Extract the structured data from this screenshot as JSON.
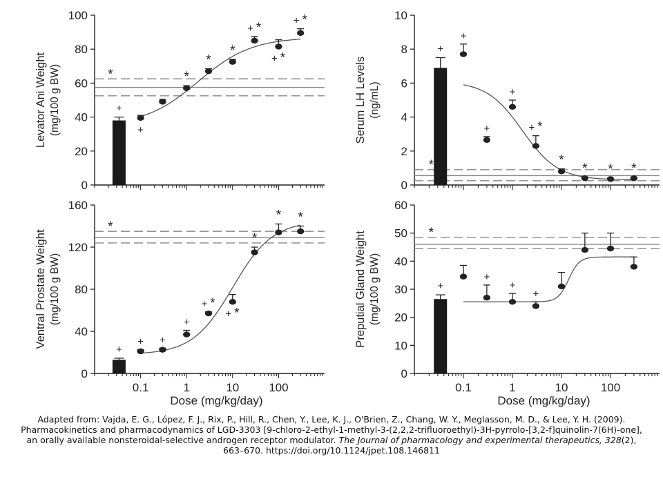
{
  "colors": {
    "ink": "#222222",
    "bar": "#1a1a1a",
    "ref_line": "#888888"
  },
  "chart_data": [
    {
      "type": "scatter",
      "ylabel": "Levator Ani Weight",
      "yunit": "(mg/100 g BW)",
      "ylim": [
        0,
        100
      ],
      "yticks": [
        0,
        20,
        40,
        60,
        80,
        100
      ],
      "xscale": "log",
      "xlim": [
        0.01,
        1000
      ],
      "xticks": [
        0.1,
        1,
        10,
        100
      ],
      "xticklabels": [],
      "xlabel": "",
      "grid": false,
      "control_bar": {
        "value": 38,
        "error": 2,
        "marks": "+"
      },
      "reference": {
        "mean": 57.5,
        "upper": 62.5,
        "lower": 52.5,
        "mark": "*"
      },
      "points": [
        {
          "x": 0.1,
          "y": 39.5,
          "err": 1.5,
          "marks": "+",
          "mark_pos": "below"
        },
        {
          "x": 0.3,
          "y": 49,
          "err": 1.5,
          "marks": "",
          "mark_pos": "above"
        },
        {
          "x": 1,
          "y": 57,
          "err": 1.5,
          "marks": "*",
          "mark_pos": "above"
        },
        {
          "x": 3,
          "y": 67,
          "err": 1.5,
          "marks": "*",
          "mark_pos": "above"
        },
        {
          "x": 10,
          "y": 72.5,
          "err": 1.5,
          "marks": "*",
          "mark_pos": "above"
        },
        {
          "x": 30,
          "y": 85,
          "err": 2.5,
          "marks": "+ *",
          "mark_pos": "above"
        },
        {
          "x": 100,
          "y": 81.5,
          "err": 4,
          "marks": "+ *",
          "mark_pos": "below"
        },
        {
          "x": 300,
          "y": 89.5,
          "err": 2.5,
          "marks": "+ *",
          "mark_pos": "above"
        }
      ],
      "curve": {
        "bottom": 35,
        "top": 87,
        "ec50": 1.8,
        "hill": 0.75,
        "from": 0.1,
        "to": 300
      }
    },
    {
      "type": "scatter",
      "ylabel": "Serum LH Levels",
      "yunit": "(ng/mL)",
      "ylim": [
        0,
        10
      ],
      "yticks": [
        0,
        2,
        4,
        6,
        8,
        10
      ],
      "xscale": "log",
      "xlim": [
        0.01,
        1000
      ],
      "xticks": [
        0.1,
        1,
        10,
        100
      ],
      "xticklabels": [],
      "xlabel": "",
      "grid": false,
      "control_bar": {
        "value": 6.9,
        "error": 0.6,
        "marks": "+"
      },
      "reference": {
        "mean": 0.55,
        "upper": 0.9,
        "lower": 0.25,
        "mark": "*"
      },
      "points": [
        {
          "x": 0.1,
          "y": 7.7,
          "err": 0.6,
          "marks": "+",
          "mark_pos": "above"
        },
        {
          "x": 0.3,
          "y": 2.65,
          "err": 0.2,
          "marks": "+",
          "mark_pos": "above"
        },
        {
          "x": 1,
          "y": 4.6,
          "err": 0.4,
          "marks": "+",
          "mark_pos": "above"
        },
        {
          "x": 3,
          "y": 2.3,
          "err": 0.6,
          "marks": "+ *",
          "mark_pos": "above"
        },
        {
          "x": 10,
          "y": 0.8,
          "err": 0.15,
          "marks": "*",
          "mark_pos": "above"
        },
        {
          "x": 30,
          "y": 0.4,
          "err": 0.05,
          "marks": "*",
          "mark_pos": "above"
        },
        {
          "x": 100,
          "y": 0.35,
          "err": 0.05,
          "marks": "*",
          "mark_pos": "above"
        },
        {
          "x": 300,
          "y": 0.4,
          "err": 0.05,
          "marks": "*",
          "mark_pos": "above"
        }
      ],
      "curve": {
        "bottom": 0.3,
        "top": 6.1,
        "ec50": 1.6,
        "hill": -1.2,
        "from": 0.1,
        "to": 300
      }
    },
    {
      "type": "scatter",
      "ylabel": "Ventral Prostate Weight",
      "yunit": "(mg/100 g BW)",
      "ylim": [
        0,
        160
      ],
      "yticks": [
        0,
        40,
        80,
        120,
        160
      ],
      "xscale": "log",
      "xlim": [
        0.01,
        1000
      ],
      "xticks": [
        0.1,
        1,
        10,
        100
      ],
      "xticklabels": [
        "0.1",
        "1",
        "10",
        "100"
      ],
      "xlabel": "Dose (mg/kg/day)",
      "grid": false,
      "control_bar": {
        "value": 13,
        "error": 1.5,
        "marks": "+"
      },
      "reference": {
        "mean": 129,
        "upper": 135,
        "lower": 124,
        "mark": "*"
      },
      "points": [
        {
          "x": 0.1,
          "y": 21,
          "err": 1.5,
          "marks": "+",
          "mark_pos": "above"
        },
        {
          "x": 0.3,
          "y": 22.5,
          "err": 1.5,
          "marks": "+",
          "mark_pos": "above"
        },
        {
          "x": 1,
          "y": 37,
          "err": 4,
          "marks": "+",
          "mark_pos": "above"
        },
        {
          "x": 3,
          "y": 57,
          "err": 1.5,
          "marks": "+ *",
          "mark_pos": "above"
        },
        {
          "x": 10,
          "y": 68,
          "err": 7,
          "marks": "+ *",
          "mark_pos": "below"
        },
        {
          "x": 30,
          "y": 115,
          "err": 5,
          "marks": "*",
          "mark_pos": "above"
        },
        {
          "x": 100,
          "y": 134,
          "err": 8,
          "marks": "*",
          "mark_pos": "above"
        },
        {
          "x": 300,
          "y": 135,
          "err": 5,
          "marks": "*",
          "mark_pos": "above"
        }
      ],
      "curve": {
        "bottom": 18,
        "top": 145,
        "ec50": 10,
        "hill": 1.0,
        "from": 0.1,
        "to": 300
      }
    },
    {
      "type": "scatter",
      "ylabel": "Preputial Gland Weight",
      "yunit": "(mg/100 g BW)",
      "ylim": [
        0,
        60
      ],
      "yticks": [
        0,
        10,
        20,
        30,
        40,
        50,
        60
      ],
      "xscale": "log",
      "xlim": [
        0.01,
        1000
      ],
      "xticks": [
        0.1,
        1,
        10,
        100
      ],
      "xticklabels": [
        "0.1",
        "1",
        "10",
        "100"
      ],
      "xlabel": "Dose (mg/kg/day)",
      "grid": false,
      "control_bar": {
        "value": 26.5,
        "error": 1.5,
        "marks": "+"
      },
      "reference": {
        "mean": 46,
        "upper": 48.5,
        "lower": 44.5,
        "mark": "*"
      },
      "points": [
        {
          "x": 0.1,
          "y": 34.5,
          "err": 4,
          "marks": "",
          "mark_pos": "above"
        },
        {
          "x": 0.3,
          "y": 27,
          "err": 4.5,
          "marks": "+",
          "mark_pos": "above"
        },
        {
          "x": 1,
          "y": 25.5,
          "err": 3,
          "marks": "+",
          "mark_pos": "above"
        },
        {
          "x": 3,
          "y": 24,
          "err": 1.5,
          "marks": "+",
          "mark_pos": "above"
        },
        {
          "x": 10,
          "y": 31,
          "err": 5,
          "marks": "",
          "mark_pos": "above"
        },
        {
          "x": 30,
          "y": 44,
          "err": 6,
          "marks": "",
          "mark_pos": "above"
        },
        {
          "x": 100,
          "y": 44.5,
          "err": 5.5,
          "marks": "",
          "mark_pos": "above"
        },
        {
          "x": 300,
          "y": 38,
          "err": 3.5,
          "marks": "",
          "mark_pos": "above"
        }
      ],
      "curve": {
        "bottom": 25.5,
        "top": 41.5,
        "ec50": 14,
        "hill": 4.0,
        "from": 0.1,
        "to": 300
      }
    }
  ],
  "citation": {
    "line1": "Adapted from: Vajda, E. G., López, F. J., Rix, P., Hill, R., Chen, Y., Lee, K. J., O'Brien, Z., Chang, W. Y., Meglasson, M. D., & Lee, Y. H. (2009).",
    "line2": "Pharmacokinetics and pharmacodynamics of LGD-3303 [9-chloro-2-ethyl-1-methyl-3-(2,2,2-trifluoroethyl)-3H-pyrrolo-[3,2-f]quinolin-7(6H)-one],",
    "line3_plain": "an orally available nonsteroidal-selective androgen receptor modulator. ",
    "journal": "The Journal of pharmacology and experimental therapeutics, 328",
    "issue": "(2),",
    "line4": "663–670. https://doi.org/10.1124/jpet.108.146811"
  }
}
